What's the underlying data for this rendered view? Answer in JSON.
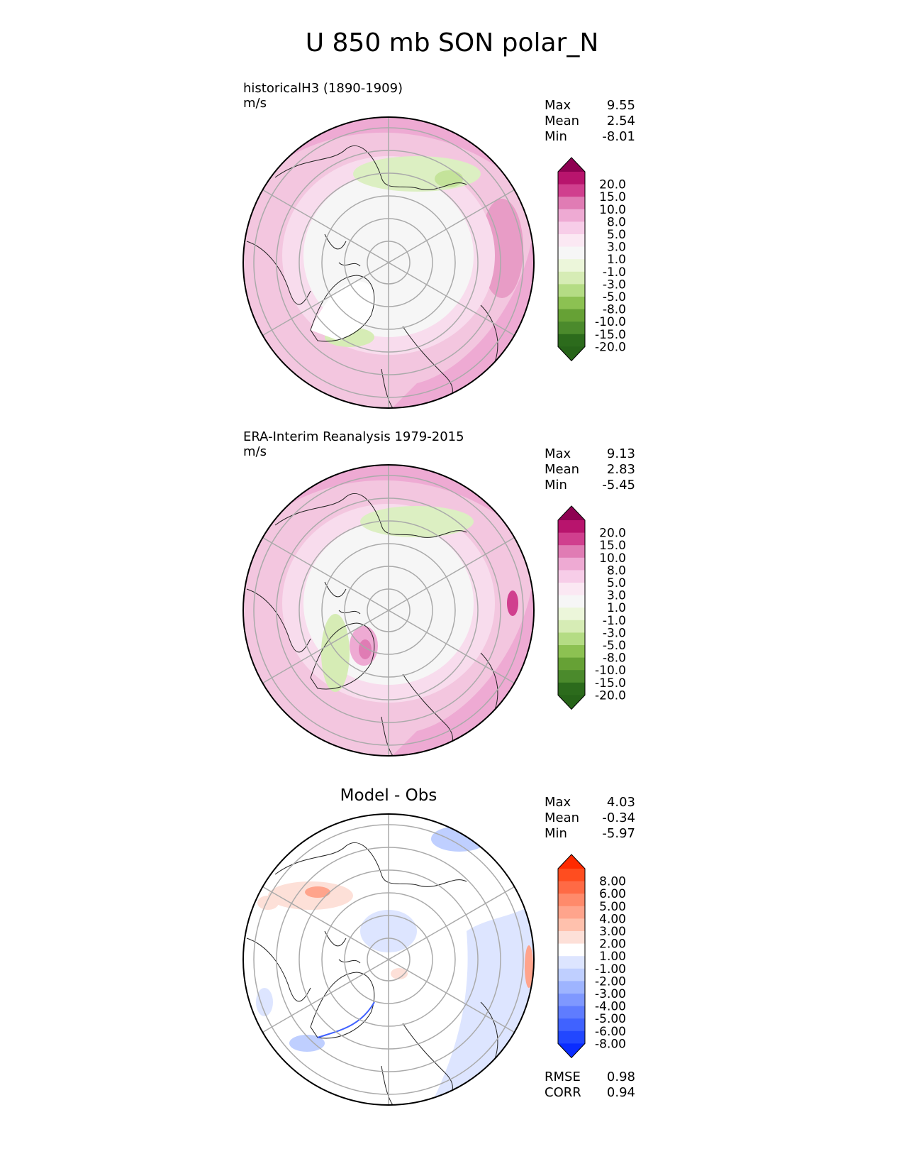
{
  "title": "U 850 mb SON polar_N",
  "panels": [
    {
      "id": "model",
      "header_line1": "historicalH3 (1890-1909)",
      "header_line2": "m/s",
      "subtitle": "",
      "stats": [
        {
          "label": "Max",
          "value": "9.55"
        },
        {
          "label": "Mean",
          "value": "2.54"
        },
        {
          "label": "Min",
          "value": "-8.01"
        }
      ],
      "colorbar": {
        "labels": [
          "20.0",
          "15.0",
          "10.0",
          "8.0",
          "5.0",
          "3.0",
          "1.0",
          "-1.0",
          "-3.0",
          "-5.0",
          "-8.0",
          "-10.0",
          "-15.0",
          "-20.0"
        ],
        "colors": [
          "#8e0152",
          "#b8146d",
          "#d03f8e",
          "#e07cb4",
          "#eeaad3",
          "#f7cde8",
          "#fbe8f3",
          "#f6f6f6",
          "#ecf6da",
          "#d6ecb5",
          "#b4dc84",
          "#8cc152",
          "#66a135",
          "#4b8a2c",
          "#2c6b1c",
          "#276419"
        ]
      },
      "footer_stats": []
    },
    {
      "id": "obs",
      "header_line1": "ERA-Interim Reanalysis 1979-2015",
      "header_line2": "m/s",
      "subtitle": "",
      "stats": [
        {
          "label": "Max",
          "value": "9.13"
        },
        {
          "label": "Mean",
          "value": "2.83"
        },
        {
          "label": "Min",
          "value": "-5.45"
        }
      ],
      "colorbar": {
        "labels": [
          "20.0",
          "15.0",
          "10.0",
          "8.0",
          "5.0",
          "3.0",
          "1.0",
          "-1.0",
          "-3.0",
          "-5.0",
          "-8.0",
          "-10.0",
          "-15.0",
          "-20.0"
        ],
        "colors": [
          "#8e0152",
          "#b8146d",
          "#d03f8e",
          "#e07cb4",
          "#eeaad3",
          "#f7cde8",
          "#fbe8f3",
          "#f6f6f6",
          "#ecf6da",
          "#d6ecb5",
          "#b4dc84",
          "#8cc152",
          "#66a135",
          "#4b8a2c",
          "#2c6b1c",
          "#276419"
        ]
      },
      "footer_stats": []
    },
    {
      "id": "diff",
      "header_line1": "",
      "header_line2": "",
      "subtitle": "Model - Obs",
      "stats": [
        {
          "label": "Max",
          "value": "4.03"
        },
        {
          "label": "Mean",
          "value": "-0.34"
        },
        {
          "label": "Min",
          "value": "-5.97"
        }
      ],
      "colorbar": {
        "labels": [
          "8.00",
          "6.00",
          "5.00",
          "4.00",
          "3.00",
          "2.00",
          "1.00",
          "-1.00",
          "-2.00",
          "-3.00",
          "-4.00",
          "-5.00",
          "-6.00",
          "-8.00"
        ],
        "colors": [
          "#ff2a00",
          "#ff4d1f",
          "#ff6a45",
          "#ff8a6b",
          "#ffa48c",
          "#ffc1ad",
          "#fde0d8",
          "#ffffff",
          "#dde5ff",
          "#bfcfff",
          "#9eb4ff",
          "#7f98ff",
          "#5f7cff",
          "#4062ff",
          "#2247ff",
          "#0a2cff"
        ]
      },
      "footer_stats": [
        {
          "label": "RMSE",
          "value": "0.98"
        },
        {
          "label": "CORR",
          "value": "0.94"
        }
      ]
    }
  ]
}
